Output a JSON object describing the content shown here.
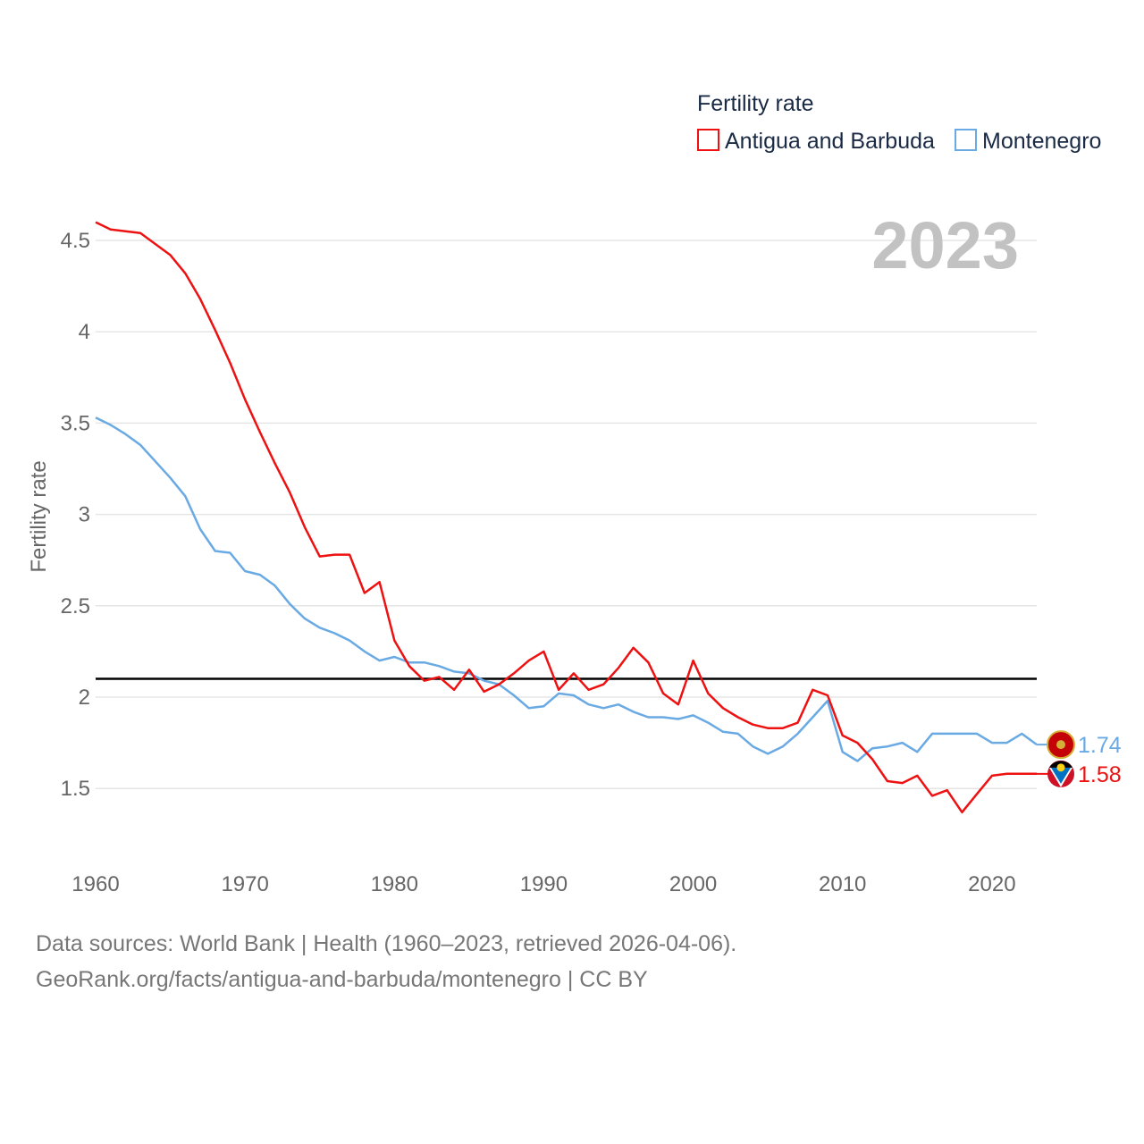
{
  "chart_data": {
    "type": "line",
    "legend_title": "Fertility rate",
    "year_label": "2023",
    "ylabel": "Fertility rate",
    "xlabel": "",
    "xlim": [
      1960,
      2023
    ],
    "ylim": [
      1.2,
      4.7
    ],
    "x_ticks": [
      1960,
      1970,
      1980,
      1990,
      2000,
      2010,
      2020
    ],
    "y_ticks": [
      1.5,
      2,
      2.5,
      3,
      3.5,
      4,
      4.5
    ],
    "y_tick_labels": [
      "1.5",
      "2",
      "2.5",
      "3",
      "3.5",
      "4",
      "4.5"
    ],
    "reference_line": {
      "value": 2.1,
      "color": "#000000"
    },
    "x": [
      1960,
      1961,
      1962,
      1963,
      1964,
      1965,
      1966,
      1967,
      1968,
      1969,
      1970,
      1971,
      1972,
      1973,
      1974,
      1975,
      1976,
      1977,
      1978,
      1979,
      1980,
      1981,
      1982,
      1983,
      1984,
      1985,
      1986,
      1987,
      1988,
      1989,
      1990,
      1991,
      1992,
      1993,
      1994,
      1995,
      1996,
      1997,
      1998,
      1999,
      2000,
      2001,
      2002,
      2003,
      2004,
      2005,
      2006,
      2007,
      2008,
      2009,
      2010,
      2011,
      2012,
      2013,
      2014,
      2015,
      2016,
      2017,
      2018,
      2019,
      2020,
      2021,
      2022,
      2023
    ],
    "series": [
      {
        "name": "Antigua and Barbuda",
        "color": "#ee1111",
        "end_label": "1.58",
        "values": [
          4.6,
          4.56,
          4.55,
          4.54,
          4.48,
          4.42,
          4.32,
          4.18,
          4.01,
          3.83,
          3.63,
          3.45,
          3.28,
          3.12,
          2.93,
          2.77,
          2.78,
          2.78,
          2.57,
          2.63,
          2.31,
          2.17,
          2.09,
          2.11,
          2.04,
          2.15,
          2.03,
          2.07,
          2.13,
          2.2,
          2.25,
          2.04,
          2.13,
          2.04,
          2.07,
          2.16,
          2.27,
          2.19,
          2.02,
          1.96,
          2.2,
          2.02,
          1.94,
          1.89,
          1.85,
          1.83,
          1.83,
          1.86,
          2.04,
          2.01,
          1.79,
          1.75,
          1.66,
          1.54,
          1.53,
          1.57,
          1.46,
          1.49,
          1.37,
          1.47,
          1.57,
          1.58,
          1.58,
          1.58
        ]
      },
      {
        "name": "Montenegro",
        "color": "#6aaae4",
        "end_label": "1.74",
        "values": [
          3.53,
          3.49,
          3.44,
          3.38,
          3.29,
          3.2,
          3.1,
          2.92,
          2.8,
          2.79,
          2.69,
          2.67,
          2.61,
          2.51,
          2.43,
          2.38,
          2.35,
          2.31,
          2.25,
          2.2,
          2.22,
          2.19,
          2.19,
          2.17,
          2.14,
          2.13,
          2.09,
          2.07,
          2.01,
          1.94,
          1.95,
          2.02,
          2.01,
          1.96,
          1.94,
          1.96,
          1.92,
          1.89,
          1.89,
          1.88,
          1.9,
          1.86,
          1.81,
          1.8,
          1.73,
          1.69,
          1.73,
          1.8,
          1.89,
          1.98,
          1.7,
          1.65,
          1.72,
          1.73,
          1.75,
          1.7,
          1.8,
          1.8,
          1.8,
          1.8,
          1.75,
          1.75,
          1.8,
          1.74
        ]
      }
    ]
  },
  "footer": {
    "line1": "Data sources: World Bank | Health (1960–2023, retrieved 2026-04-06).",
    "line2": "GeoRank.org/facts/antigua-and-barbuda/montenegro | CC BY"
  }
}
